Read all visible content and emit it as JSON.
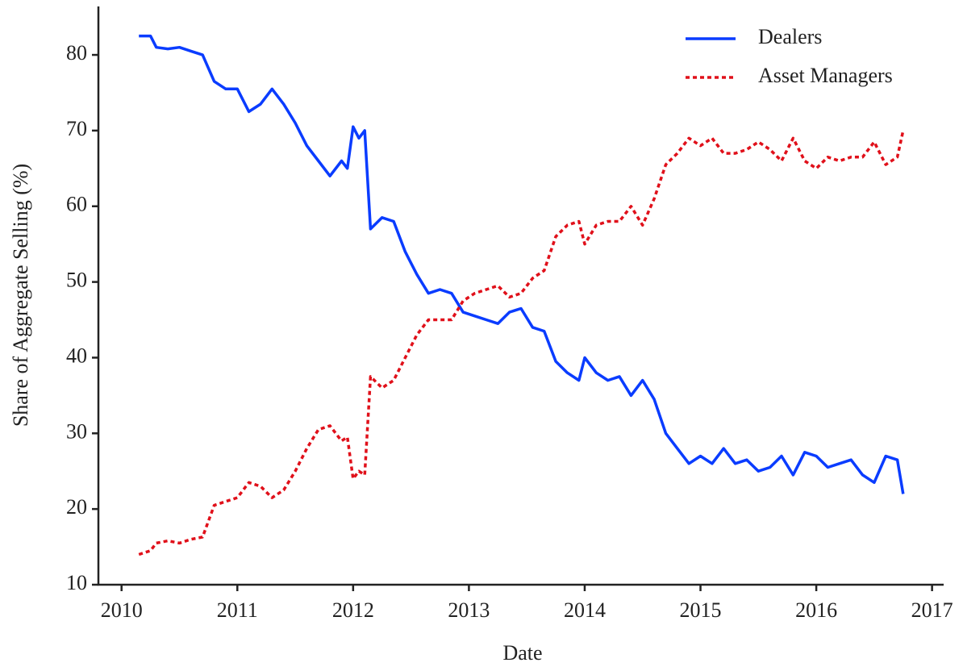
{
  "chart_data": {
    "type": "line",
    "xlabel": "Date",
    "ylabel": "Share of Aggregate Selling (%)",
    "x": [
      2010.15,
      2010.25,
      2010.3,
      2010.4,
      2010.5,
      2010.6,
      2010.7,
      2010.8,
      2010.9,
      2011.0,
      2011.1,
      2011.2,
      2011.3,
      2011.4,
      2011.5,
      2011.6,
      2011.7,
      2011.8,
      2011.9,
      2011.95,
      2012.0,
      2012.05,
      2012.1,
      2012.15,
      2012.25,
      2012.35,
      2012.45,
      2012.55,
      2012.65,
      2012.75,
      2012.85,
      2012.95,
      2013.05,
      2013.15,
      2013.25,
      2013.35,
      2013.45,
      2013.55,
      2013.65,
      2013.75,
      2013.85,
      2013.95,
      2014.0,
      2014.1,
      2014.2,
      2014.3,
      2014.4,
      2014.5,
      2014.6,
      2014.7,
      2014.8,
      2014.9,
      2015.0,
      2015.1,
      2015.2,
      2015.3,
      2015.4,
      2015.5,
      2015.6,
      2015.7,
      2015.8,
      2015.9,
      2016.0,
      2016.1,
      2016.2,
      2016.3,
      2016.4,
      2016.5,
      2016.6,
      2016.7,
      2016.75
    ],
    "series": [
      {
        "name": "Dealers",
        "color": "#0a3cff",
        "linestyle": "solid",
        "values": [
          82.5,
          82.5,
          81,
          80.8,
          81,
          80.5,
          80,
          76.5,
          75.5,
          75.5,
          72.5,
          73.5,
          75.5,
          73.5,
          71,
          68,
          66,
          64,
          66,
          65,
          70.5,
          69,
          70,
          57,
          58.5,
          58,
          54,
          51,
          48.5,
          49,
          48.5,
          46,
          45.5,
          45,
          44.5,
          46,
          46.5,
          44,
          43.5,
          39.5,
          38,
          37,
          40,
          38,
          37,
          37.5,
          35,
          37,
          34.5,
          30,
          28,
          26,
          27,
          26,
          28,
          26,
          26.5,
          25,
          25.5,
          27,
          24.5,
          27.5,
          27,
          25.5,
          26,
          26.5,
          24.5,
          23.5,
          27,
          26.5,
          22
        ]
      },
      {
        "name": "Asset Managers",
        "color": "#e0101a",
        "linestyle": "dashed",
        "values": [
          14,
          14.5,
          15.5,
          15.8,
          15.5,
          16,
          16.3,
          20.5,
          21,
          21.5,
          23.5,
          23,
          21.5,
          22.5,
          25,
          28,
          30.5,
          31,
          29,
          29.5,
          24,
          25,
          24.5,
          37.5,
          36,
          37,
          40,
          43,
          45,
          45,
          45,
          47.5,
          48.5,
          49,
          49.5,
          48,
          48.5,
          50.5,
          51.5,
          56,
          57.5,
          58,
          55,
          57.5,
          58,
          58,
          60,
          57.5,
          61,
          65.5,
          67,
          69,
          68,
          69,
          67,
          67,
          67.5,
          68.5,
          67.5,
          66,
          69,
          66,
          65,
          66.5,
          66,
          66.5,
          66.5,
          68.5,
          65.5,
          66.5,
          70
        ]
      }
    ],
    "xlim": [
      2009.8,
      2017.1
    ],
    "xticks": [
      2010,
      2011,
      2012,
      2013,
      2014,
      2015,
      2016,
      2017
    ],
    "ylim": [
      10,
      86.4
    ],
    "yticks": [
      10,
      20,
      30,
      40,
      50,
      60,
      70,
      80
    ],
    "grid": false,
    "legend": "upper right"
  }
}
